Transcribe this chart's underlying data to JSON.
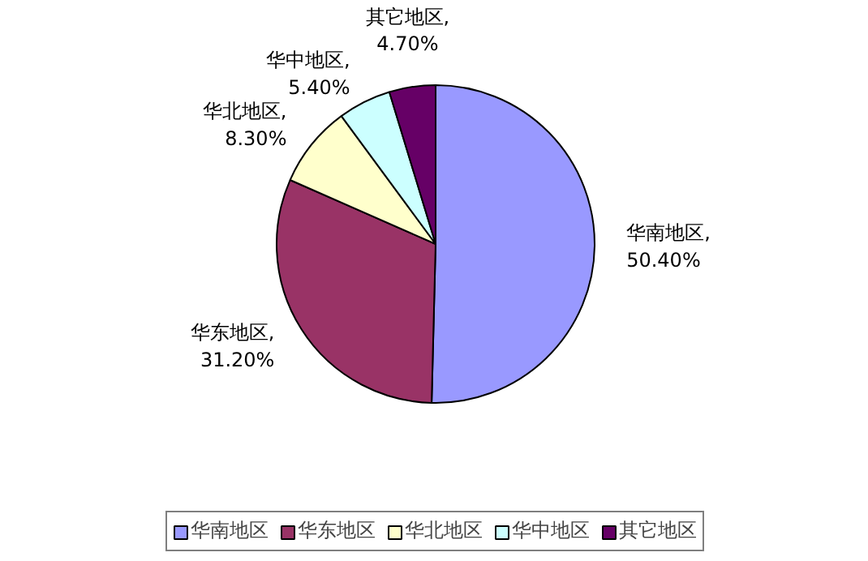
{
  "chart_data": {
    "type": "pie",
    "categories": [
      "华南地区",
      "华东地区",
      "华北地区",
      "华中地区",
      "其它地区"
    ],
    "values": [
      50.4,
      31.2,
      8.3,
      5.4,
      4.7
    ],
    "value_labels": [
      "华南地区,\n50.40%",
      "华东地区,\n31.20%",
      "华北地区,\n8.30%",
      "华中地区,\n5.40%",
      "其它地区,\n4.70%"
    ],
    "colors": [
      "#9999ff",
      "#993366",
      "#ffffcc",
      "#ccffff",
      "#660066"
    ],
    "legend": "bottom"
  }
}
